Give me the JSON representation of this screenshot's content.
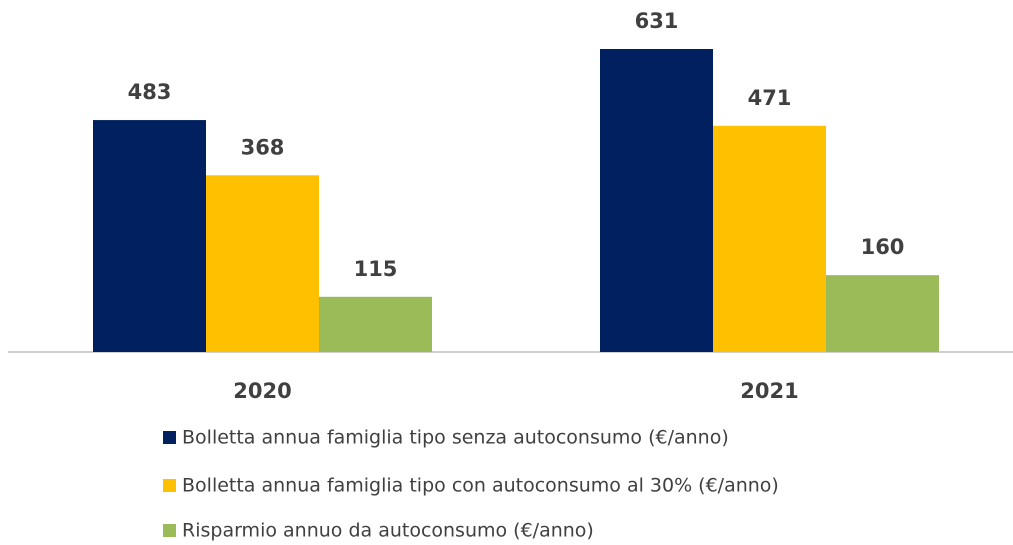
{
  "chart_data": {
    "type": "bar",
    "categories": [
      "2020",
      "2021"
    ],
    "series": [
      {
        "name": "Bolletta annua famiglia tipo senza autoconsumo (€/anno)",
        "color": "#002060",
        "values": [
          483,
          631
        ]
      },
      {
        "name": "Bolletta annua famiglia tipo con autoconsumo al 30% (€/anno)",
        "color": "#ffc000",
        "values": [
          368,
          471
        ]
      },
      {
        "name": "Risparmio annuo da autoconsumo (€/anno)",
        "color": "#9bbb59",
        "values": [
          115,
          160
        ]
      }
    ]
  }
}
